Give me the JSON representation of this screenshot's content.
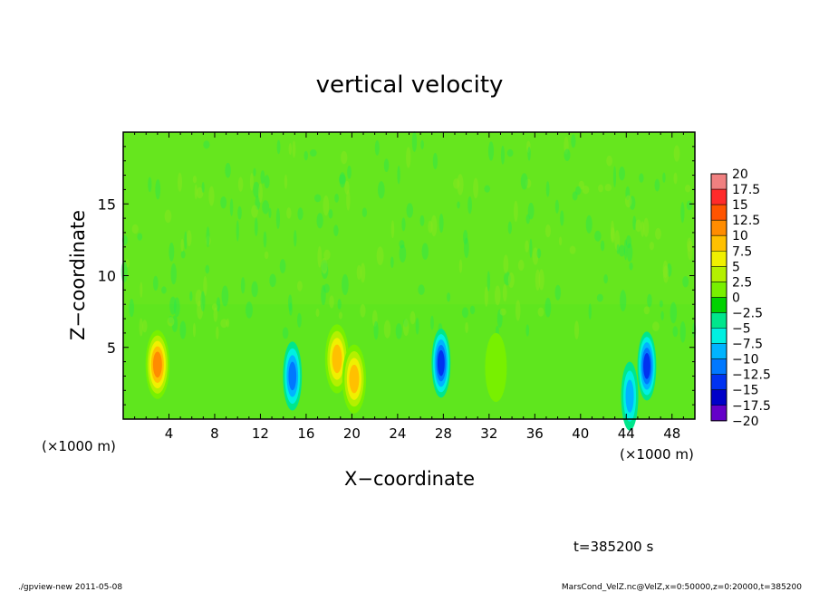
{
  "chart_data": {
    "type": "heatmap",
    "title": "vertical velocity",
    "xlabel": "X−coordinate",
    "ylabel": "Z−coordinate",
    "x_unit_left": "(×1000 m)",
    "x_unit_right": "(×1000 m)",
    "xlim": [
      0,
      50
    ],
    "ylim": [
      0,
      20
    ],
    "xticks": [
      "4",
      "8",
      "12",
      "16",
      "20",
      "24",
      "28",
      "32",
      "36",
      "40",
      "44",
      "48"
    ],
    "xtick_values": [
      4,
      8,
      12,
      16,
      20,
      24,
      28,
      32,
      36,
      40,
      44,
      48
    ],
    "yticks": [
      "5",
      "10",
      "15"
    ],
    "ytick_values": [
      5,
      10,
      15
    ],
    "colorbar": {
      "labels": [
        "20",
        "17.5",
        "15",
        "12.5",
        "10",
        "7.5",
        "5",
        "2.5",
        "0",
        "−2.5",
        "−5",
        "−7.5",
        "−10",
        "−12.5",
        "−15",
        "−17.5",
        "−20"
      ],
      "colors": [
        "#f08080",
        "#ff2a2a",
        "#ff5400",
        "#ff8c00",
        "#ffc000",
        "#f0f000",
        "#b4f000",
        "#78f000",
        "#00d200",
        "#00e68c",
        "#00f0e1",
        "#00b4ff",
        "#0078ff",
        "#0032f0",
        "#0000c8",
        "#6400c8"
      ]
    },
    "features": [
      {
        "kind": "updraft",
        "x": 3,
        "z": 3.8,
        "peak": 12.5
      },
      {
        "kind": "updraft",
        "x": 18.7,
        "z": 4.2,
        "peak": 10
      },
      {
        "kind": "updraft",
        "x": 20.2,
        "z": 2.8,
        "peak": 10
      },
      {
        "kind": "downdraft",
        "x": 14.8,
        "z": 3,
        "peak": -10
      },
      {
        "kind": "downdraft",
        "x": 27.8,
        "z": 3.9,
        "peak": -12.5
      },
      {
        "kind": "downdraft",
        "x": 45.8,
        "z": 3.7,
        "peak": -12.5
      },
      {
        "kind": "downdraft",
        "x": 44.3,
        "z": 1.6,
        "peak": -7.5
      },
      {
        "kind": "updraft",
        "x": 32.6,
        "z": 3.6,
        "peak": 2.5
      }
    ],
    "time_label": "t=385200 s"
  },
  "footer": {
    "left": "./gpview-new  2011-05-08",
    "right": "MarsCond_VelZ.nc@VelZ,x=0:50000,z=0:20000,t=385200"
  }
}
